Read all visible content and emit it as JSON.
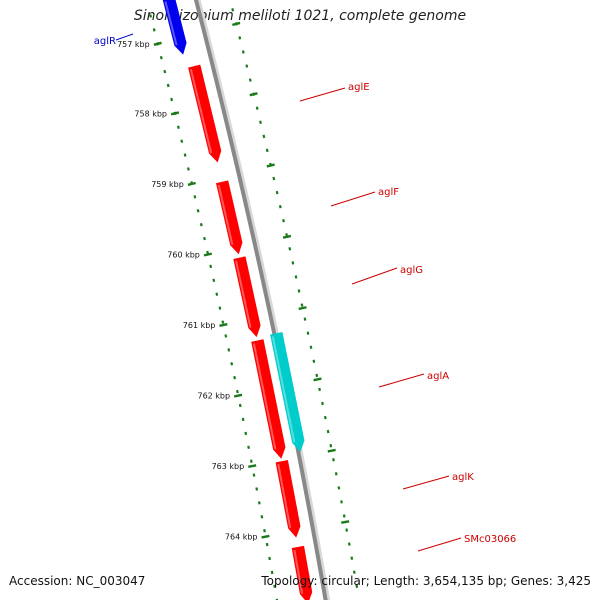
{
  "title": "Sinorhizobium meliloti 1021, complete genome",
  "footer": {
    "accession": "Accession: NC_003047",
    "stats": "Topology: circular; Length: 3,654,135 bp; Genes: 3,425"
  },
  "scale": {
    "unit": "kbp",
    "ticks": [
      "757 kbp",
      "758 kbp",
      "759 kbp",
      "760 kbp",
      "761 kbp",
      "762 kbp",
      "763 kbp",
      "764 kbp"
    ]
  },
  "colors": {
    "backbone": "#888888",
    "tick": "#1a7a1a",
    "label_red": "#cc0000",
    "label_blue": "#0000cc",
    "gene_red": "#ff0000",
    "gene_blue": "#0000ee",
    "gene_cyan": "#00cccc"
  },
  "genes": [
    {
      "name": "aglR",
      "color": "#0000ee",
      "label_color": "#0000cc"
    },
    {
      "name": "aglE",
      "color": "#ff0000",
      "label_color": "#cc0000"
    },
    {
      "name": "aglF",
      "color": "#ff0000",
      "label_color": "#cc0000"
    },
    {
      "name": "aglG",
      "color": "#ff0000",
      "label_color": "#cc0000"
    },
    {
      "name": "aglA",
      "color": "#00cccc",
      "label_color": "#cc0000"
    },
    {
      "name": "aglK",
      "color": "#ff0000",
      "label_color": "#cc0000"
    },
    {
      "name": "SMc03066",
      "color": "#ff0000",
      "label_color": "#cc0000"
    }
  ]
}
